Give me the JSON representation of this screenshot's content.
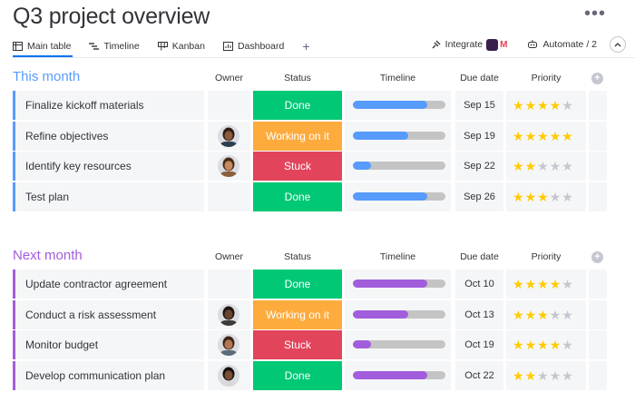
{
  "page": {
    "title": "Q3 project overview",
    "more": "•••"
  },
  "tabs": [
    {
      "label": "Main table",
      "icon": "table-icon"
    },
    {
      "label": "Timeline",
      "icon": "timeline-icon"
    },
    {
      "label": "Kanban",
      "icon": "kanban-icon"
    },
    {
      "label": "Dashboard",
      "icon": "dashboard-icon"
    }
  ],
  "add_tab": "+",
  "toolbar": {
    "integrate": "Integrate",
    "automate": "Automate / 2"
  },
  "columns": {
    "owner": "Owner",
    "status": "Status",
    "timeline": "Timeline",
    "due": "Due date",
    "priority": "Priority"
  },
  "colors": {
    "done": "#00c875",
    "working": "#fdab3d",
    "stuck": "#e2445c",
    "blue": "#579bfc",
    "purple": "#a25ddc",
    "star_on": "#ffcb00",
    "star_off": "#c5c7d0"
  },
  "groups": [
    {
      "title": "This month",
      "color": "#579bfc",
      "rows": [
        {
          "name": "Finalize kickoff materials",
          "owner": "",
          "status": "Done",
          "status_key": "done",
          "progress": 0.8,
          "due": "Sep 15",
          "priority": 4
        },
        {
          "name": "Refine objectives",
          "owner": "avatar",
          "status": "Working on it",
          "status_key": "working",
          "progress": 0.6,
          "due": "Sep 19",
          "priority": 5
        },
        {
          "name": "Identify key resources",
          "owner": "avatar",
          "status": "Stuck",
          "status_key": "stuck",
          "progress": 0.2,
          "due": "Sep 22",
          "priority": 2
        },
        {
          "name": "Test plan",
          "owner": "",
          "status": "Done",
          "status_key": "done",
          "progress": 0.8,
          "due": "Sep 26",
          "priority": 3
        }
      ]
    },
    {
      "title": "Next month",
      "color": "#a25ddc",
      "rows": [
        {
          "name": "Update contractor agreement",
          "owner": "",
          "status": "Done",
          "status_key": "done",
          "progress": 0.8,
          "due": "Oct 10",
          "priority": 4
        },
        {
          "name": "Conduct a risk assessment",
          "owner": "avatar",
          "status": "Working on it",
          "status_key": "working",
          "progress": 0.6,
          "due": "Oct 13",
          "priority": 3
        },
        {
          "name": "Monitor budget",
          "owner": "avatar",
          "status": "Stuck",
          "status_key": "stuck",
          "progress": 0.2,
          "due": "Oct 19",
          "priority": 4
        },
        {
          "name": "Develop communication plan",
          "owner": "avatar",
          "status": "Done",
          "status_key": "done",
          "progress": 0.8,
          "due": "Oct 22",
          "priority": 2
        }
      ]
    }
  ]
}
